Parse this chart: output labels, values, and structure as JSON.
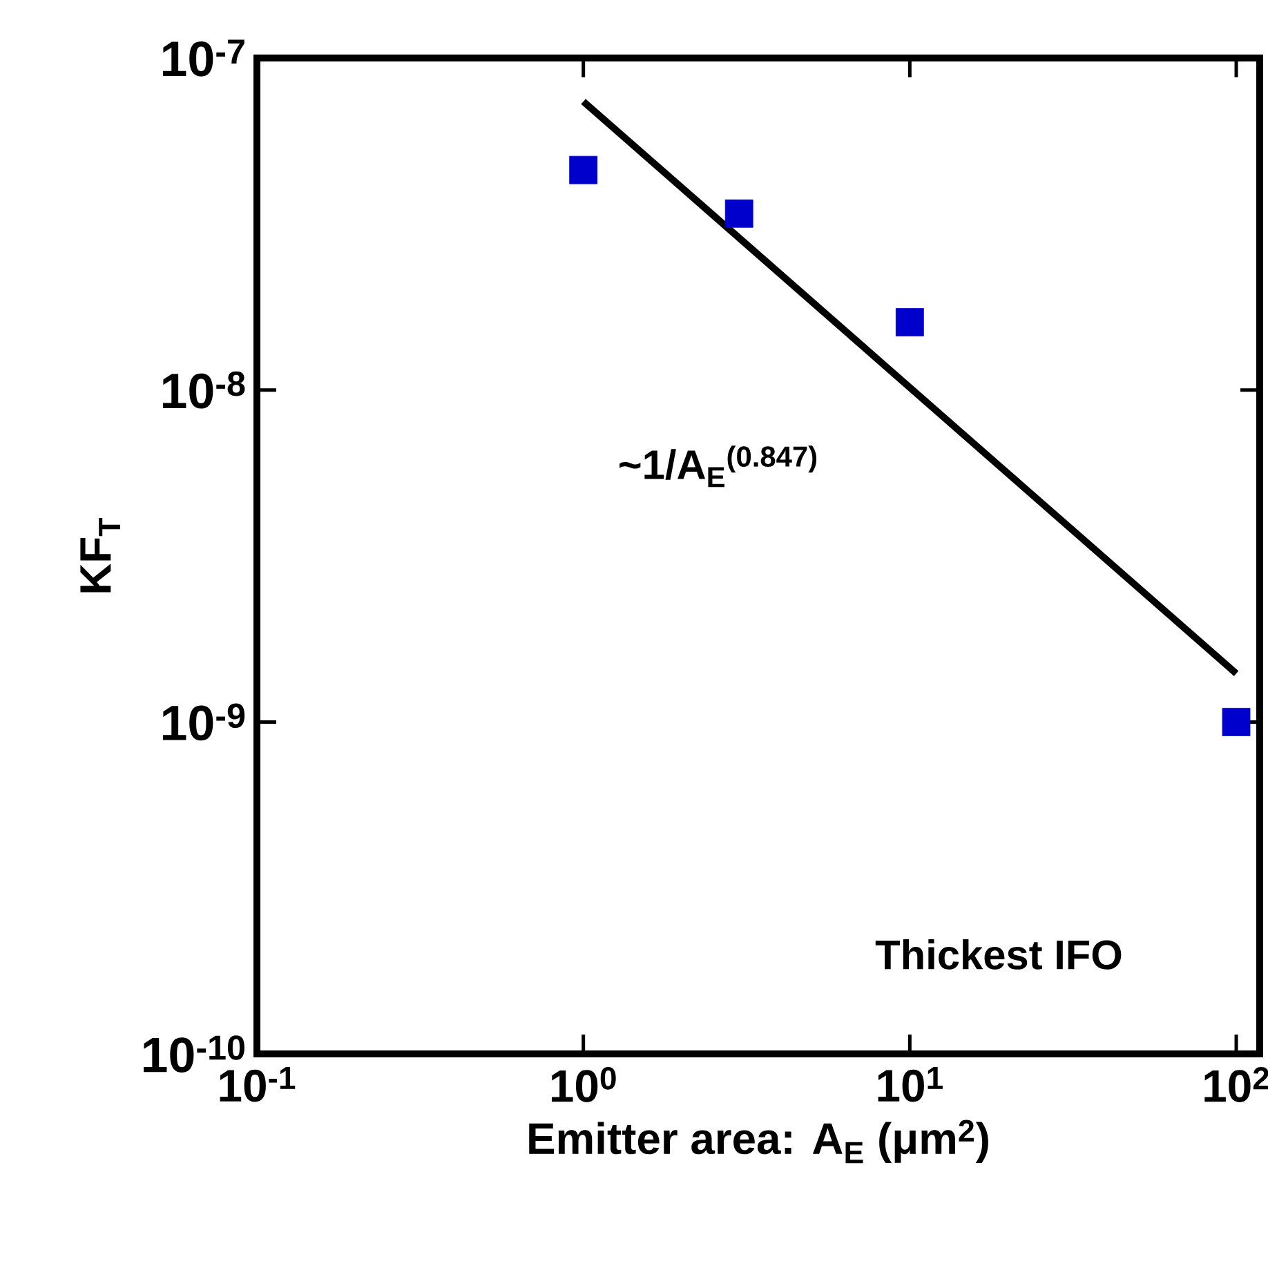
{
  "chart_data": {
    "type": "scatter",
    "log": "xy",
    "xlabel": "Emitter area: A$_{E}$ (μm$^{2}$)",
    "ylabel": "KF$_{T}$",
    "xlim": [
      0.1,
      118
    ],
    "ylim": [
      1e-10,
      1e-07
    ],
    "xticks": [
      {
        "value": 0.1,
        "label": "10$^{-1}$"
      },
      {
        "value": 1,
        "label": "10$^{0}$"
      },
      {
        "value": 10,
        "label": "10$^{1}$"
      },
      {
        "value": 100,
        "label": "10$^{2}$"
      }
    ],
    "yticks": [
      {
        "value": 1e-10,
        "label": "10$^{-10}$"
      },
      {
        "value": 1e-09,
        "label": "10$^{-9}$"
      },
      {
        "value": 1e-08,
        "label": "10$^{-8}$"
      },
      {
        "value": 1e-07,
        "label": "10$^{-7}$"
      }
    ],
    "marker": "square",
    "series": [
      {
        "color": "#0000cc",
        "x": [
          1,
          3,
          10,
          100
        ],
        "values": [
          4.6e-08,
          3.4e-08,
          1.6e-08,
          1e-09
        ]
      },
      {
        "type": "line",
        "color": "#000000",
        "marker": "none",
        "x": [
          1,
          100
        ],
        "values": [
          7.4e-08,
          1.4e-09
        ]
      }
    ],
    "annotations": [
      "~1/A$_{E}$$^{(0.847)}$",
      "Thickest IFO"
    ]
  }
}
